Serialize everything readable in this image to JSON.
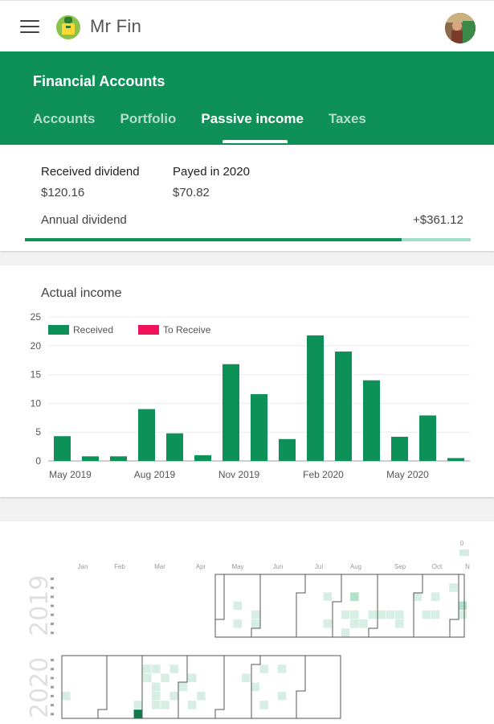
{
  "appbar": {
    "title": "Mr Fin"
  },
  "header": {
    "title": "Financial Accounts",
    "tabs": [
      {
        "label": "Accounts",
        "active": false
      },
      {
        "label": "Portfolio",
        "active": false
      },
      {
        "label": "Passive income",
        "active": true
      },
      {
        "label": "Taxes",
        "active": false
      }
    ]
  },
  "summary": {
    "received_label": "Received dividend",
    "received_value": "$120.16",
    "payed_label": "Payed in 2020",
    "payed_value": "$70.82",
    "annual_label": "Annual dividend",
    "annual_value": "+$361.12",
    "progress_fraction": 0.845
  },
  "chart_data": {
    "type": "bar",
    "title": "Actual income",
    "categories": [
      "May 2019",
      "Jun 2019",
      "Jul 2019",
      "Aug 2019",
      "Sep 2019",
      "Oct 2019",
      "Nov 2019",
      "Dec 2019",
      "Jan 2020",
      "Feb 2020",
      "Mar 2020",
      "Apr 2020",
      "May 2020",
      "Jun 2020",
      "Jul 2020"
    ],
    "series": [
      {
        "name": "Received",
        "color": "#0e9159",
        "values": [
          4.3,
          0.8,
          0.8,
          9,
          4.8,
          1,
          16.8,
          11.6,
          3.8,
          21.8,
          19,
          14,
          4.2,
          7.9,
          0.5
        ]
      },
      {
        "name": "To Receive",
        "color": "#f0135c",
        "values": [
          0,
          0,
          0,
          0,
          0,
          0,
          0,
          0,
          0,
          0,
          0,
          0,
          0,
          0,
          0
        ]
      }
    ],
    "x_tick_labels": [
      "May 2019",
      "Aug 2019",
      "Nov 2019",
      "Feb 2020",
      "May 2020"
    ],
    "y_ticks": [
      0,
      5,
      10,
      15,
      20,
      25
    ],
    "ylim": [
      0,
      25
    ],
    "legend_position": "top-left",
    "grid": true
  },
  "calendar": {
    "years": [
      "2019",
      "2020"
    ],
    "months": [
      "Jan",
      "Feb",
      "Mar",
      "Apr",
      "May",
      "Jun",
      "Jul",
      "Aug",
      "Sep",
      "Oct",
      "N"
    ],
    "scale_label": "0"
  }
}
